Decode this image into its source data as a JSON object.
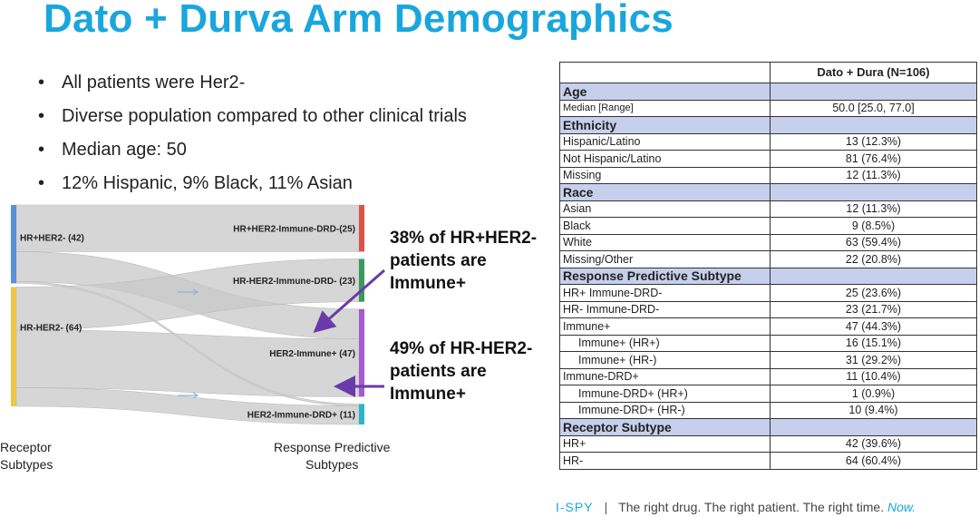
{
  "title": "Dato + Durva Arm Demographics",
  "bullets": [
    "All patients were Her2-",
    "Diverse population compared to other clinical trials",
    "Median age: 50",
    "12% Hispanic, 9% Black, 11% Asian"
  ],
  "sankey": {
    "sources": [
      {
        "label": "HR+HER2- (42)",
        "value": 42,
        "color": "#5b8fd6"
      },
      {
        "label": "HR-HER2- (64)",
        "value": 64,
        "color": "#ecc64b"
      }
    ],
    "targets": [
      {
        "label": "HR+HER2-Immune-DRD-(25)",
        "value": 25,
        "color": "#d9534a"
      },
      {
        "label": "HR-HER2-Immune-DRD- (23)",
        "value": 23,
        "color": "#3a9a5b"
      },
      {
        "label": "HER2-Immune+ (47)",
        "value": 47,
        "color": "#a65bd0"
      },
      {
        "label": "HER2-Immune-DRD+ (11)",
        "value": 11,
        "color": "#2bb6c8"
      }
    ],
    "flows": [
      {
        "from": 0,
        "to": 0,
        "value": 25
      },
      {
        "from": 0,
        "to": 2,
        "value": 16
      },
      {
        "from": 0,
        "to": 3,
        "value": 1
      },
      {
        "from": 1,
        "to": 1,
        "value": 23
      },
      {
        "from": 1,
        "to": 2,
        "value": 31
      },
      {
        "from": 1,
        "to": 3,
        "value": 10
      }
    ],
    "left_axis_label": [
      "Receptor",
      "Subtypes"
    ],
    "right_axis_label": [
      "Response Predictive",
      "Subtypes"
    ],
    "arrow_color": "#6a3aa8",
    "link_color": "#c8c8c8"
  },
  "callouts": [
    [
      "38% of HR+HER2-",
      "patients are",
      "Immune+"
    ],
    [
      "49% of HR-HER2-",
      "patients are",
      "Immune+"
    ]
  ],
  "table": {
    "column_header": "Dato + Dura (N=106)",
    "rows": [
      {
        "type": "section",
        "label": "Age"
      },
      {
        "type": "row",
        "label": "Median [Range]",
        "value": "50.0  [25.0,  77.0]",
        "small": true
      },
      {
        "type": "section",
        "label": "Ethnicity"
      },
      {
        "type": "row",
        "label": "Hispanic/Latino",
        "value": "13  (12.3%)"
      },
      {
        "type": "row",
        "label": "Not Hispanic/Latino",
        "value": "81  (76.4%)"
      },
      {
        "type": "row",
        "label": "Missing",
        "value": "12  (11.3%)"
      },
      {
        "type": "section",
        "label": "Race"
      },
      {
        "type": "row",
        "label": "Asian",
        "value": "12  (11.3%)"
      },
      {
        "type": "row",
        "label": "Black",
        "value": "9  (8.5%)"
      },
      {
        "type": "row",
        "label": "White",
        "value": "63  (59.4%)"
      },
      {
        "type": "row",
        "label": "Missing/Other",
        "value": "22  (20.8%)"
      },
      {
        "type": "section",
        "label": "Response Predictive Subtype"
      },
      {
        "type": "row",
        "label": "HR+ Immune-DRD-",
        "value": "25 (23.6%)"
      },
      {
        "type": "row",
        "label": "HR- Immune-DRD-",
        "value": "23 (21.7%)"
      },
      {
        "type": "row",
        "label": "Immune+",
        "value": "47 (44.3%)"
      },
      {
        "type": "row",
        "label": "Immune+ (HR+)",
        "value": "16 (15.1%)",
        "indent": true
      },
      {
        "type": "row",
        "label": "Immune+ (HR-)",
        "value": "31 (29.2%)",
        "indent": true
      },
      {
        "type": "row",
        "label": "Immune-DRD+",
        "value": "11 (10.4%)"
      },
      {
        "type": "row",
        "label": "Immune-DRD+ (HR+)",
        "value": "1 (0.9%)",
        "indent": true
      },
      {
        "type": "row",
        "label": "Immune-DRD+ (HR-)",
        "value": "10 (9.4%)",
        "indent": true
      },
      {
        "type": "section",
        "label": "Receptor Subtype"
      },
      {
        "type": "row",
        "label": "HR+",
        "value": "42 (39.6%)"
      },
      {
        "type": "row",
        "label": "HR-",
        "value": "64 (60.4%)"
      }
    ]
  },
  "footer": {
    "brand": "I-SPY",
    "separator": "|",
    "tagline": "The right drug. The right patient. The right time.",
    "emphasis": "Now."
  }
}
